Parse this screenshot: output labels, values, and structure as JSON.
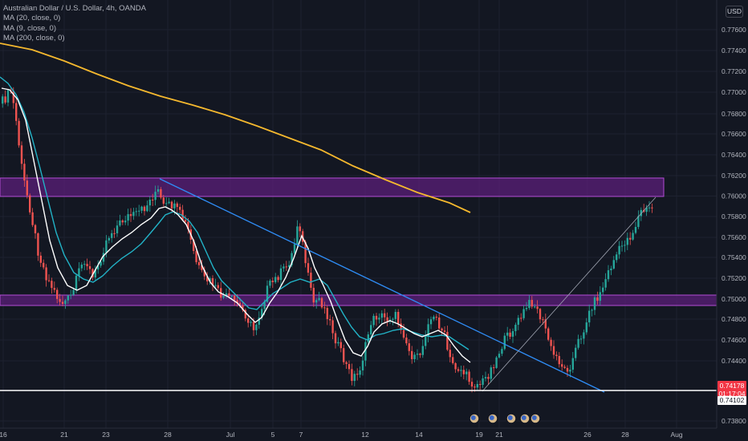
{
  "legend": {
    "title": "Australian Dollar / U.S. Dollar, 4h, OANDA",
    "indicators": [
      "MA (20, close, 0)",
      "MA (9, close, 0)",
      "MA (200, close, 0)"
    ]
  },
  "price_axis": {
    "currency": "USD",
    "labels": [
      "0.77600",
      "0.77400",
      "0.77200",
      "0.77000",
      "0.76800",
      "0.76600",
      "0.76400",
      "0.76200",
      "0.76000",
      "0.75800",
      "0.75600",
      "0.75400",
      "0.75200",
      "0.75000",
      "0.74800",
      "0.74600",
      "0.74400",
      "0.73800"
    ],
    "current_price": "0.74178",
    "countdown": "01:17:04",
    "line_price": "0.74102"
  },
  "time_axis": {
    "labels": [
      "16",
      "21",
      "23",
      "28",
      "Jul",
      "5",
      "7",
      "12",
      "14",
      "19",
      "21",
      "26",
      "28",
      "Aug"
    ]
  },
  "colors": {
    "background": "#131722",
    "up_candle": "#26a69a",
    "down_candle": "#ef5350",
    "ma20": "#22b3c7",
    "ma9": "#ffffff",
    "ma200": "#f5b82e",
    "zone_fill": "#5b1f7a",
    "zone_border": "#b34cd6",
    "trendline": "#2f8df6"
  },
  "events": [
    "event-icon",
    "event-icon",
    "event-icon",
    "event-icon",
    "event-icon"
  ]
}
